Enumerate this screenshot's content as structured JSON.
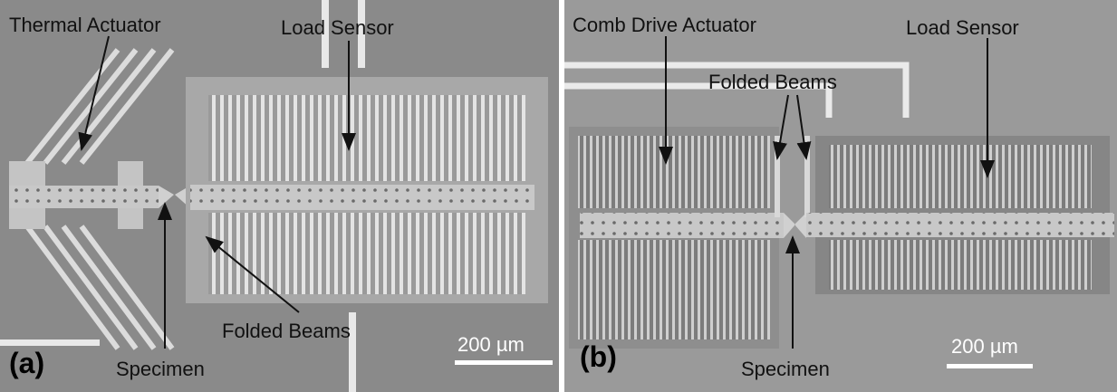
{
  "panels": [
    {
      "label": "(a)",
      "annotations": {
        "actuator": "Thermal Actuator",
        "sensor": "Load Sensor",
        "beams": "Folded Beams",
        "specimen": "Specimen"
      },
      "scale_bar": "200 µm"
    },
    {
      "label": "(b)",
      "annotations": {
        "actuator": "Comb Drive Actuator",
        "sensor": "Load Sensor",
        "beams": "Folded Beams",
        "specimen": "Specimen"
      },
      "scale_bar": "200 µm"
    }
  ]
}
